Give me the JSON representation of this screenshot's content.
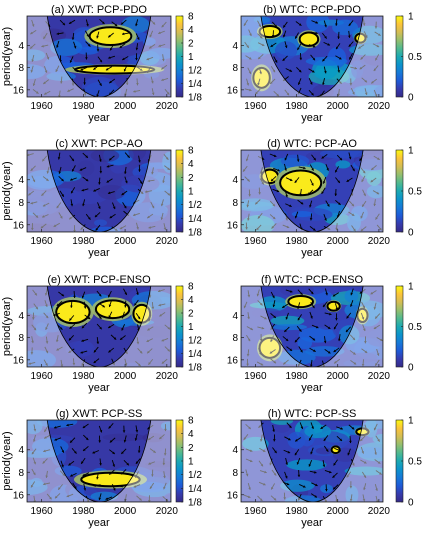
{
  "chart_data": [
    {
      "type": "heatmap",
      "title": "(a) XWT: PCP-PDO",
      "xlabel": "year",
      "ylabel": "period(year)",
      "x_ticks": [
        "1960",
        "1980",
        "2000",
        "2020"
      ],
      "y_ticks": [
        "4",
        "8",
        "16"
      ],
      "colorbar_ticks": [
        "8",
        "4",
        "2",
        "1",
        "1/2",
        "1/4",
        "1/8"
      ],
      "significant_regions": [
        {
          "center_year": 1993,
          "center_period": 3.0,
          "span_years": 20,
          "span_octaves": 0.8
        },
        {
          "center_year": 1995,
          "center_period": 8.5,
          "span_years": 38,
          "span_octaves": 0.35
        }
      ]
    },
    {
      "type": "heatmap",
      "title": "(b) WTC: PCP-PDO",
      "xlabel": "year",
      "ylabel": "",
      "x_ticks": [
        "1960",
        "1980",
        "2000",
        "2020"
      ],
      "y_ticks": [
        "4",
        "8",
        "16"
      ],
      "colorbar_ticks": [
        "1",
        "0.5",
        "0"
      ],
      "significant_regions": [
        {
          "center_year": 1967,
          "center_period": 2.6,
          "span_years": 10,
          "span_octaves": 0.5
        },
        {
          "center_year": 1986,
          "center_period": 3.3,
          "span_years": 9,
          "span_octaves": 0.6
        },
        {
          "center_year": 2011,
          "center_period": 3.2,
          "span_years": 5,
          "span_octaves": 0.4
        },
        {
          "center_year": 1963,
          "center_period": 11,
          "span_years": 8,
          "span_octaves": 0.9
        }
      ]
    },
    {
      "type": "heatmap",
      "title": "(c) XWT: PCP-AO",
      "xlabel": "year",
      "ylabel": "period(year)",
      "x_ticks": [
        "1960",
        "1980",
        "2000",
        "2020"
      ],
      "y_ticks": [
        "4",
        "8",
        "16"
      ],
      "colorbar_ticks": [
        "8",
        "4",
        "2",
        "1",
        "1/2",
        "1/4",
        "1/8"
      ],
      "significant_regions": []
    },
    {
      "type": "heatmap",
      "title": "(d) WTC: PCP-AO",
      "xlabel": "year",
      "ylabel": "",
      "x_ticks": [
        "1960",
        "1980",
        "2000",
        "2020"
      ],
      "y_ticks": [
        "4",
        "8",
        "16"
      ],
      "colorbar_ticks": [
        "1",
        "0.5",
        "0"
      ],
      "significant_regions": [
        {
          "center_year": 1967,
          "center_period": 3.6,
          "span_years": 8,
          "span_octaves": 0.6
        },
        {
          "center_year": 1982,
          "center_period": 4.4,
          "span_years": 20,
          "span_octaves": 1.1
        }
      ]
    },
    {
      "type": "heatmap",
      "title": "(e) XWT: PCP-ENSO",
      "xlabel": "year",
      "ylabel": "period(year)",
      "x_ticks": [
        "1960",
        "1980",
        "2000",
        "2020"
      ],
      "y_ticks": [
        "4",
        "8",
        "16"
      ],
      "colorbar_ticks": [
        "8",
        "4",
        "2",
        "1",
        "1/2",
        "1/4",
        "1/8"
      ],
      "significant_regions": [
        {
          "center_year": 1975,
          "center_period": 3.6,
          "span_years": 16,
          "span_octaves": 1.0
        },
        {
          "center_year": 1994,
          "center_period": 3.3,
          "span_years": 16,
          "span_octaves": 0.8
        },
        {
          "center_year": 2008,
          "center_period": 3.8,
          "span_years": 8,
          "span_octaves": 0.8
        }
      ]
    },
    {
      "type": "heatmap",
      "title": "(f) WTC: PCP-ENSO",
      "xlabel": "year",
      "ylabel": "",
      "x_ticks": [
        "1960",
        "1980",
        "2000",
        "2020"
      ],
      "y_ticks": [
        "4",
        "8",
        "16"
      ],
      "colorbar_ticks": [
        "1",
        "0.5",
        "0"
      ],
      "significant_regions": [
        {
          "center_year": 1982,
          "center_period": 2.6,
          "span_years": 12,
          "span_octaves": 0.5
        },
        {
          "center_year": 1998,
          "center_period": 3.0,
          "span_years": 6,
          "span_octaves": 0.4
        },
        {
          "center_year": 1967,
          "center_period": 11,
          "span_years": 10,
          "span_octaves": 0.9
        },
        {
          "center_year": 2012,
          "center_period": 4.0,
          "span_years": 5,
          "span_octaves": 0.6
        }
      ]
    },
    {
      "type": "heatmap",
      "title": "(g) XWT: PCP-SS",
      "xlabel": "year",
      "ylabel": "period(year)",
      "x_ticks": [
        "1960",
        "1980",
        "2000",
        "2020"
      ],
      "y_ticks": [
        "4",
        "8",
        "16"
      ],
      "colorbar_ticks": [
        "8",
        "4",
        "2",
        "1",
        "1/2",
        "1/4",
        "1/8"
      ],
      "significant_regions": [
        {
          "center_year": 1993,
          "center_period": 10,
          "span_years": 28,
          "span_octaves": 0.6
        }
      ]
    },
    {
      "type": "heatmap",
      "title": "(h) WTC: PCP-SS",
      "xlabel": "year",
      "ylabel": "",
      "x_ticks": [
        "1960",
        "1980",
        "2000",
        "2020"
      ],
      "y_ticks": [
        "4",
        "8",
        "16"
      ],
      "colorbar_ticks": [
        "1",
        "0.5",
        "0"
      ],
      "significant_regions": [
        {
          "center_year": 2012,
          "center_period": 2.3,
          "span_years": 6,
          "span_octaves": 0.3
        },
        {
          "center_year": 1999,
          "center_period": 4.0,
          "span_years": 4,
          "span_octaves": 0.3
        }
      ]
    }
  ]
}
